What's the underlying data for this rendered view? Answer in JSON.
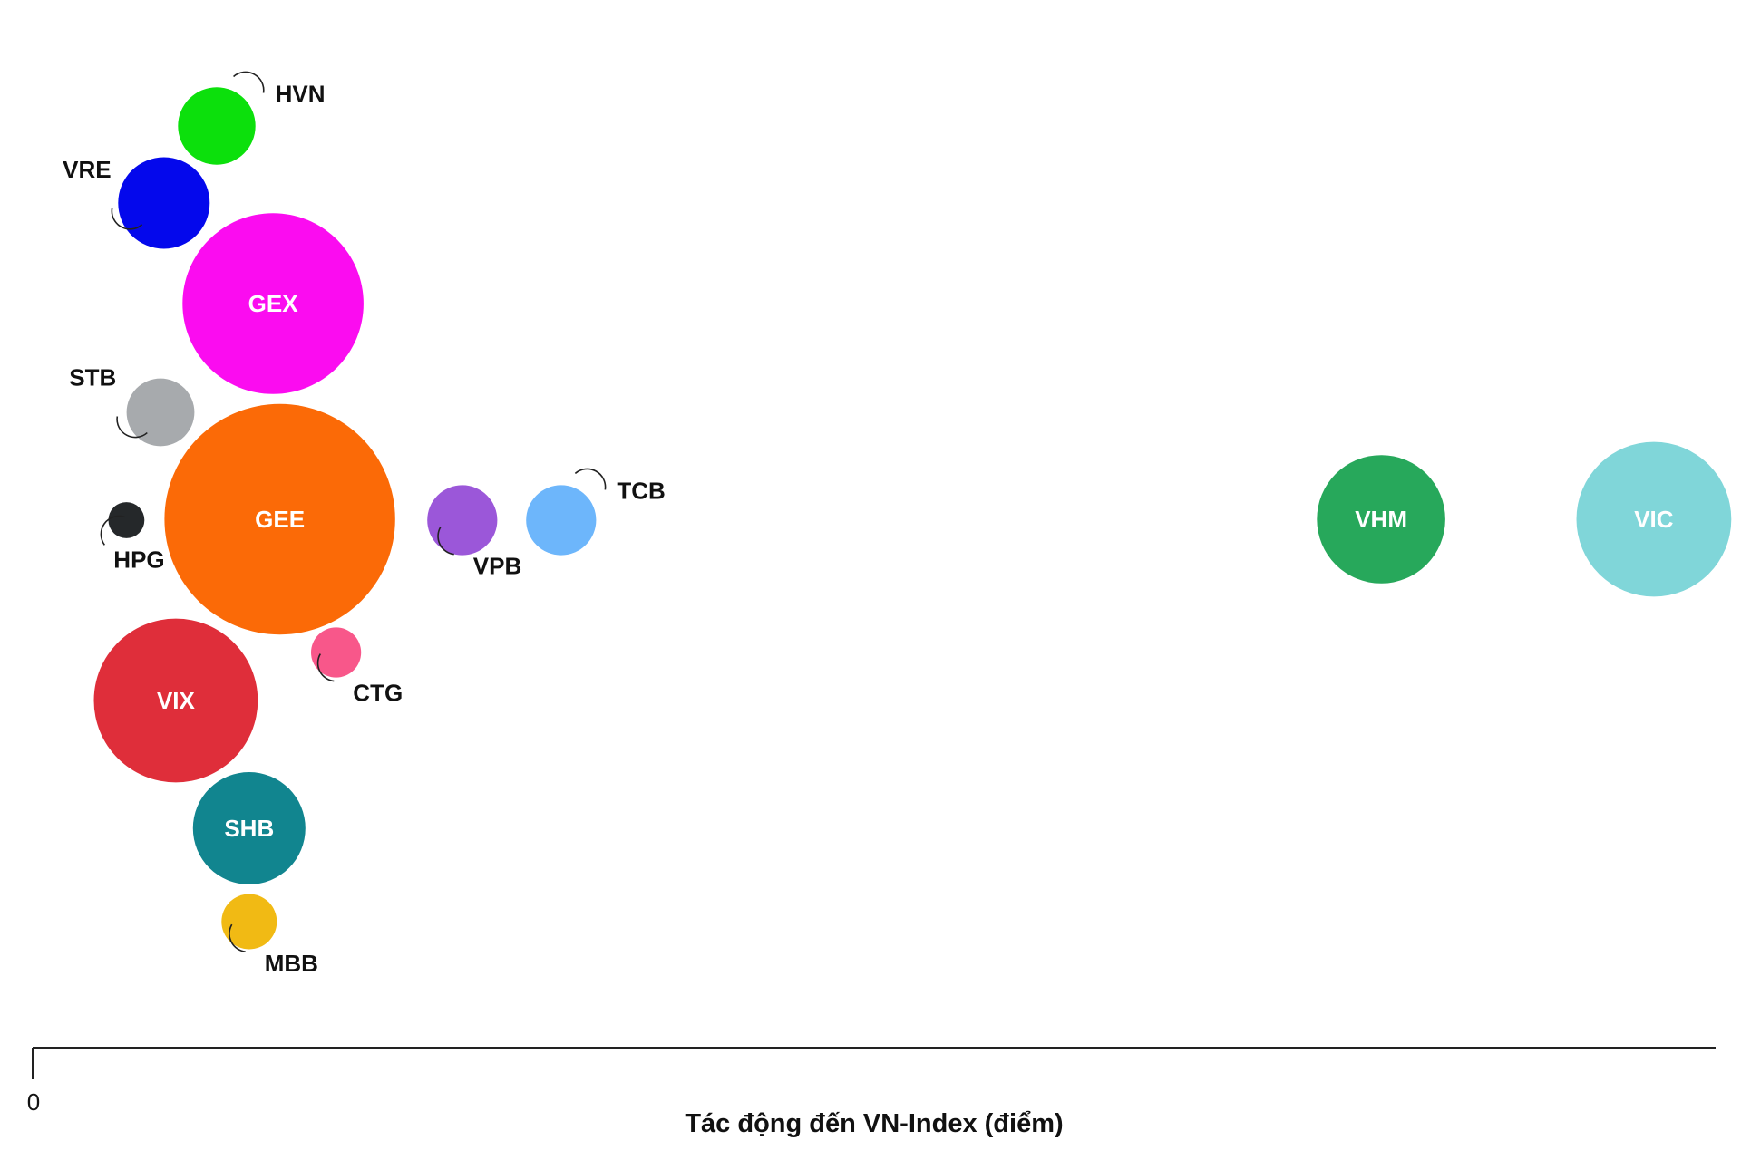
{
  "chart_data": {
    "type": "scatter",
    "subtype": "beeswarm-bubble",
    "xlabel": "Tác động đến VN-Index (điểm)",
    "x_ticks": [
      "0"
    ],
    "legend": "none",
    "grid": false,
    "points": [
      {
        "name": "VIC",
        "x": 9.51,
        "size": 4.79,
        "color": "#80D6D9",
        "label_inside": true
      },
      {
        "name": "VHM",
        "x": 7.91,
        "size": 3.3,
        "color": "#27A85B",
        "label_inside": true
      },
      {
        "name": "GEE",
        "x": 1.45,
        "size": 10.63,
        "color": "#FB6A07",
        "label_inside": true
      },
      {
        "name": "GEX",
        "x": 1.41,
        "size": 6.55,
        "color": "#FB0CF0",
        "label_inside": true
      },
      {
        "name": "VIX",
        "x": 0.84,
        "size": 5.37,
        "color": "#DF2E3A",
        "label_inside": true
      },
      {
        "name": "SHB",
        "x": 1.27,
        "size": 2.53,
        "color": "#11858F",
        "label_inside": true
      },
      {
        "name": "VRE",
        "x": 0.77,
        "size": 1.68,
        "color": "#0408EC",
        "label_inside": false
      },
      {
        "name": "HVN",
        "x": 1.08,
        "size": 1.2,
        "color": "#0CE00C",
        "label_inside": false
      },
      {
        "name": "STB",
        "x": 0.75,
        "size": 0.92,
        "color": "#A7AAAD",
        "label_inside": false
      },
      {
        "name": "HPG",
        "x": 0.55,
        "size": 0.26,
        "color": "#25282A",
        "label_inside": false
      },
      {
        "name": "VPB",
        "x": 2.52,
        "size": 0.98,
        "color": "#9B57D9",
        "label_inside": false
      },
      {
        "name": "TCB",
        "x": 3.1,
        "size": 0.98,
        "color": "#6DB6FB",
        "label_inside": false
      },
      {
        "name": "CTG",
        "x": 1.78,
        "size": 0.5,
        "color": "#F8578A",
        "label_inside": false
      },
      {
        "name": "MBB",
        "x": 1.27,
        "size": 0.61,
        "color": "#F1BA14",
        "label_inside": false
      }
    ]
  }
}
